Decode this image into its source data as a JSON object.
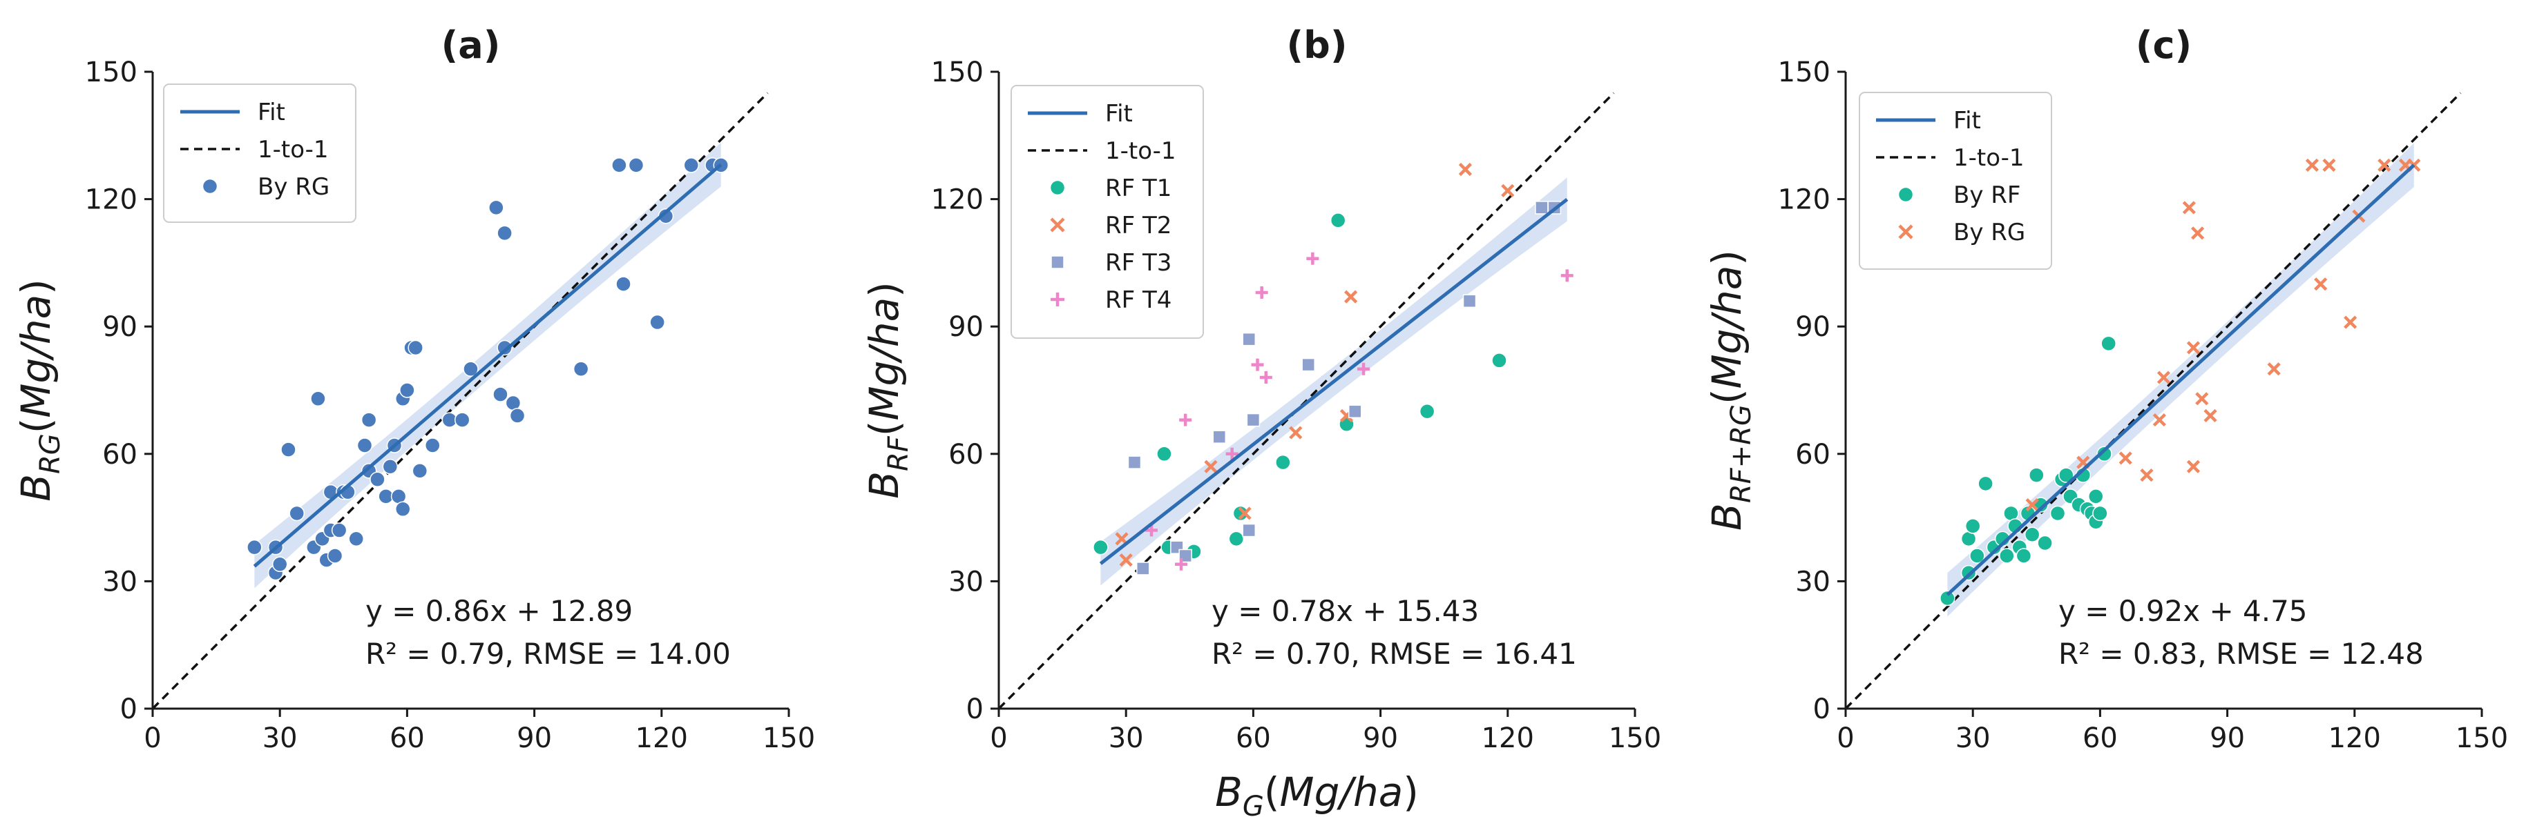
{
  "chart_data": [
    {
      "type": "scatter",
      "panel_label": "(a)",
      "ylabel": {
        "base": "B",
        "sub": "RG",
        "unit": "(Mg/ha)"
      },
      "xlim": [
        0,
        150
      ],
      "ylim": [
        0,
        150
      ],
      "ticks": [
        0,
        30,
        60,
        90,
        120,
        150
      ],
      "tick_labels": [
        "0",
        "30",
        "60",
        "90",
        "120",
        "150"
      ],
      "fit": {
        "slope": 0.86,
        "intercept": 12.89,
        "x_range": [
          24,
          134
        ]
      },
      "equation": [
        "y = 0.86x + 12.89",
        "R² = 0.79, RMSE = 14.00"
      ],
      "legend": [
        "Fit",
        "1-to-1",
        "By RG"
      ],
      "series": [
        {
          "name": "By RG",
          "marker": "circle",
          "color": "#4a7bbd",
          "points": [
            [
              24,
              38
            ],
            [
              29,
              38
            ],
            [
              29,
              32
            ],
            [
              30,
              34
            ],
            [
              32,
              61
            ],
            [
              34,
              46
            ],
            [
              34,
              46
            ],
            [
              38,
              38
            ],
            [
              39,
              73
            ],
            [
              40,
              40
            ],
            [
              41,
              35
            ],
            [
              42,
              42
            ],
            [
              42,
              51
            ],
            [
              43,
              36
            ],
            [
              44,
              42
            ],
            [
              45,
              51
            ],
            [
              46,
              51
            ],
            [
              48,
              40
            ],
            [
              50,
              62
            ],
            [
              51,
              68
            ],
            [
              51,
              56
            ],
            [
              53,
              54
            ],
            [
              55,
              50
            ],
            [
              56,
              57
            ],
            [
              57,
              62
            ],
            [
              58,
              50
            ],
            [
              59,
              47
            ],
            [
              59,
              73
            ],
            [
              60,
              75
            ],
            [
              61,
              85
            ],
            [
              62,
              85
            ],
            [
              63,
              56
            ],
            [
              66,
              62
            ],
            [
              70,
              68
            ],
            [
              73,
              68
            ],
            [
              75,
              80
            ],
            [
              81,
              118
            ],
            [
              82,
              74
            ],
            [
              83,
              112
            ],
            [
              83,
              85
            ],
            [
              85,
              72
            ],
            [
              86,
              69
            ],
            [
              101,
              80
            ],
            [
              110,
              128
            ],
            [
              111,
              100
            ],
            [
              114,
              128
            ],
            [
              119,
              91
            ],
            [
              121,
              116
            ],
            [
              127,
              128
            ],
            [
              132,
              128
            ],
            [
              134,
              128
            ]
          ]
        }
      ]
    },
    {
      "type": "scatter",
      "panel_label": "(b)",
      "ylabel": {
        "base": "B",
        "sub": "RF",
        "unit": "(Mg/ha)"
      },
      "xlabel": {
        "base": "B",
        "sub": "G",
        "unit": "(Mg/ha)"
      },
      "xlim": [
        0,
        150
      ],
      "ylim": [
        0,
        150
      ],
      "ticks": [
        0,
        30,
        60,
        90,
        120,
        150
      ],
      "tick_labels": [
        "0",
        "30",
        "60",
        "90",
        "120",
        "150"
      ],
      "fit": {
        "slope": 0.78,
        "intercept": 15.43,
        "x_range": [
          24,
          134
        ]
      },
      "equation": [
        "y = 0.78x + 15.43",
        "R² = 0.70, RMSE = 16.41"
      ],
      "legend": [
        "Fit",
        "1-to-1",
        "RF T1",
        "RF T2",
        "RF T3",
        "RF T4"
      ],
      "series": [
        {
          "name": "RF T1",
          "marker": "circle",
          "color": "#19b899",
          "points": [
            [
              24,
              38
            ],
            [
              39,
              60
            ],
            [
              40,
              38
            ],
            [
              46,
              37
            ],
            [
              56,
              40
            ],
            [
              57,
              46
            ],
            [
              67,
              58
            ],
            [
              80,
              115
            ],
            [
              82,
              67
            ],
            [
              101,
              70
            ],
            [
              118,
              82
            ]
          ]
        },
        {
          "name": "RF T2",
          "marker": "x",
          "color": "#f0875e",
          "points": [
            [
              29,
              40
            ],
            [
              30,
              35
            ],
            [
              50,
              57
            ],
            [
              58,
              46
            ],
            [
              70,
              65
            ],
            [
              82,
              69
            ],
            [
              83,
              97
            ],
            [
              110,
              127
            ],
            [
              120,
              122
            ]
          ]
        },
        {
          "name": "RF T3",
          "marker": "square",
          "color": "#8ea0cd",
          "points": [
            [
              32,
              58
            ],
            [
              34,
              33
            ],
            [
              42,
              38
            ],
            [
              44,
              36
            ],
            [
              52,
              64
            ],
            [
              59,
              87
            ],
            [
              59,
              42
            ],
            [
              60,
              68
            ],
            [
              73,
              81
            ],
            [
              84,
              70
            ],
            [
              111,
              96
            ],
            [
              128,
              118
            ],
            [
              131,
              118
            ]
          ]
        },
        {
          "name": "RF T4",
          "marker": "plus",
          "color": "#ee85c9",
          "points": [
            [
              36,
              42
            ],
            [
              43,
              34
            ],
            [
              44,
              68
            ],
            [
              55,
              60
            ],
            [
              61,
              81
            ],
            [
              62,
              98
            ],
            [
              63,
              78
            ],
            [
              74,
              106
            ],
            [
              86,
              80
            ],
            [
              134,
              102
            ]
          ]
        }
      ]
    },
    {
      "type": "scatter",
      "panel_label": "(c)",
      "ylabel": {
        "base": "B",
        "sub": "RF+RG",
        "unit": "(Mg/ha)"
      },
      "xlim": [
        0,
        150
      ],
      "ylim": [
        0,
        150
      ],
      "ticks": [
        0,
        30,
        60,
        90,
        120,
        150
      ],
      "tick_labels": [
        "0",
        "30",
        "60",
        "90",
        "120",
        "150"
      ],
      "fit": {
        "slope": 0.92,
        "intercept": 4.75,
        "x_range": [
          24,
          134
        ]
      },
      "equation": [
        "y = 0.92x + 4.75",
        "R² = 0.83, RMSE = 12.48"
      ],
      "legend": [
        "Fit",
        "1-to-1",
        "By RF",
        "By RG"
      ],
      "series": [
        {
          "name": "By RF",
          "marker": "circle",
          "color": "#19b899",
          "points": [
            [
              24,
              26
            ],
            [
              29,
              40
            ],
            [
              29,
              32
            ],
            [
              30,
              43
            ],
            [
              31,
              36
            ],
            [
              33,
              53
            ],
            [
              35,
              38
            ],
            [
              37,
              40
            ],
            [
              38,
              36
            ],
            [
              39,
              46
            ],
            [
              40,
              43
            ],
            [
              41,
              38
            ],
            [
              42,
              36
            ],
            [
              43,
              46
            ],
            [
              44,
              41
            ],
            [
              45,
              55
            ],
            [
              46,
              48
            ],
            [
              47,
              39
            ],
            [
              50,
              46
            ],
            [
              51,
              54
            ],
            [
              52,
              55
            ],
            [
              53,
              50
            ],
            [
              55,
              48
            ],
            [
              56,
              55
            ],
            [
              57,
              47
            ],
            [
              58,
              46
            ],
            [
              59,
              44
            ],
            [
              59,
              50
            ],
            [
              60,
              46
            ],
            [
              61,
              60
            ],
            [
              62,
              86
            ]
          ]
        },
        {
          "name": "By RG",
          "marker": "x",
          "color": "#f0875e",
          "points": [
            [
              44,
              48
            ],
            [
              56,
              58
            ],
            [
              66,
              59
            ],
            [
              71,
              55
            ],
            [
              74,
              68
            ],
            [
              75,
              78
            ],
            [
              81,
              118
            ],
            [
              82,
              57
            ],
            [
              82,
              85
            ],
            [
              83,
              112
            ],
            [
              84,
              73
            ],
            [
              86,
              69
            ],
            [
              101,
              80
            ],
            [
              110,
              128
            ],
            [
              112,
              100
            ],
            [
              114,
              128
            ],
            [
              119,
              91
            ],
            [
              121,
              116
            ],
            [
              127,
              128
            ],
            [
              132,
              128
            ],
            [
              134,
              128
            ]
          ]
        }
      ]
    }
  ]
}
